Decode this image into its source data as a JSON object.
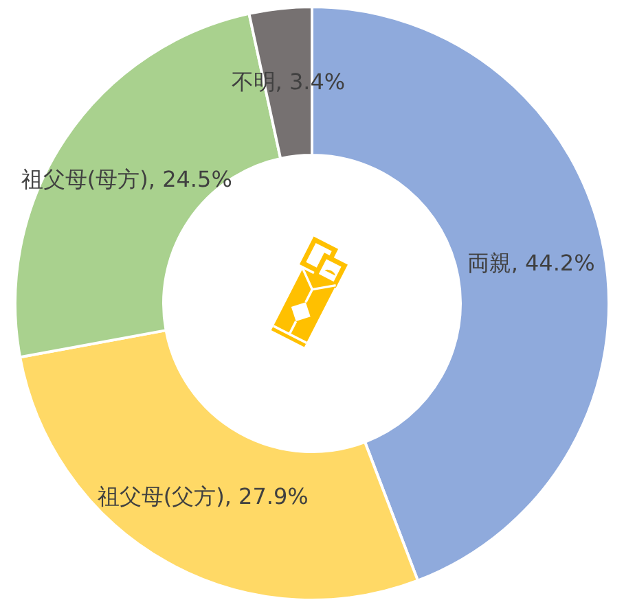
{
  "chart_data": {
    "type": "donut",
    "categories": [
      "両親",
      "祖父母(父方)",
      "祖父母(母方)",
      "不明"
    ],
    "values": [
      44.2,
      27.9,
      24.5,
      3.4
    ],
    "colors": [
      "#8faadc",
      "#ffd966",
      "#a9d18e",
      "#767171"
    ],
    "value_labels": [
      "44.2%",
      "27.9%",
      "24.5%",
      "3.4%"
    ]
  }
}
